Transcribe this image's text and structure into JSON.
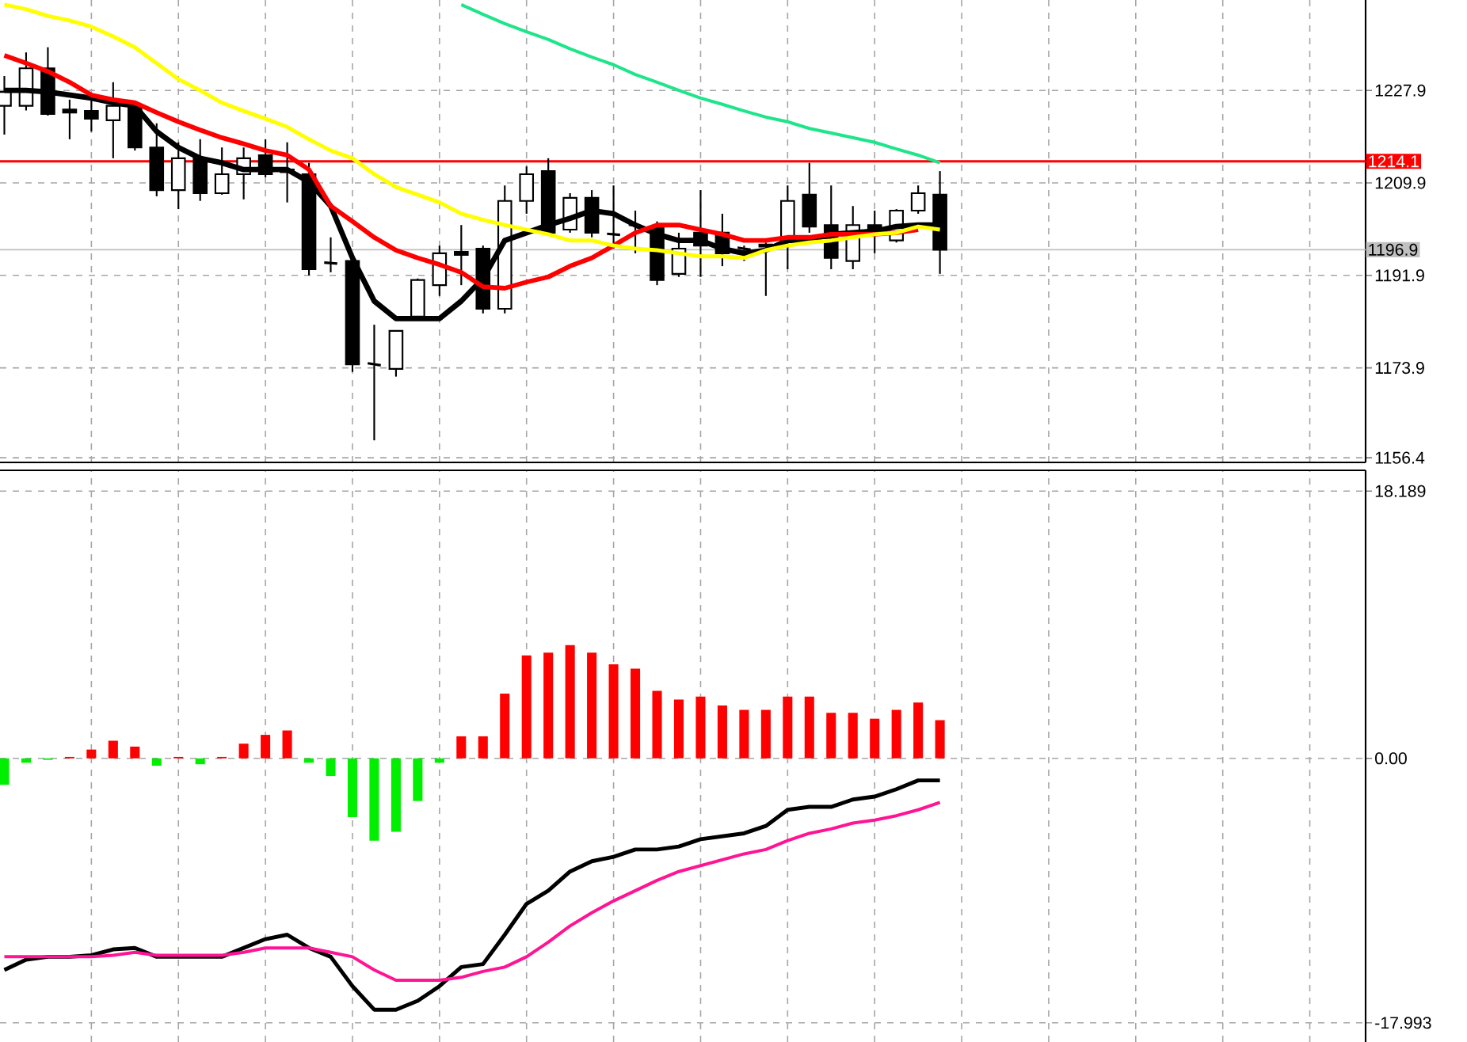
{
  "chart_data": [
    {
      "type": "candlestick",
      "categories": [
        null,
        null,
        null,
        null,
        null,
        null,
        null,
        null,
        null,
        null,
        null,
        null,
        null,
        null,
        null,
        null,
        null,
        null,
        null,
        null,
        null,
        null,
        null,
        null,
        null,
        null,
        null,
        null,
        null,
        null,
        null,
        null,
        null,
        null,
        null,
        null,
        null,
        null,
        null,
        null,
        null,
        null,
        null,
        null
      ],
      "ohlc": [
        [
          1224.9,
          1230.7,
          1219.3,
          1227.6
        ],
        [
          1224.9,
          1235.3,
          1224.0,
          1232.2
        ],
        [
          1232.2,
          1236.3,
          1223.0,
          1223.3
        ],
        [
          1224.2,
          1226.1,
          1218.4,
          1223.6
        ],
        [
          1223.9,
          1227.0,
          1219.9,
          1222.4
        ],
        [
          1222.1,
          1229.5,
          1214.7,
          1224.9
        ],
        [
          1224.9,
          1225.5,
          1216.2,
          1216.8
        ],
        [
          1216.8,
          1221.5,
          1207.3,
          1208.5
        ],
        [
          1208.5,
          1217.8,
          1204.8,
          1214.7
        ],
        [
          1214.7,
          1218.4,
          1206.4,
          1207.9
        ],
        [
          1207.9,
          1216.8,
          1207.6,
          1211.6
        ],
        [
          1211.6,
          1216.8,
          1206.7,
          1214.7
        ],
        [
          1215.3,
          1218.4,
          1211.0,
          1211.6
        ],
        [
          1212.5,
          1217.8,
          1206.1,
          1212.0
        ],
        [
          1211.6,
          1213.8,
          1191.9,
          1193.1
        ],
        [
          1194.4,
          1199.3,
          1192.5,
          1194.2
        ],
        [
          1194.7,
          1194.7,
          1173.1,
          1174.6
        ],
        [
          1174.8,
          1182.3,
          1159.8,
          1174.4
        ],
        [
          1173.7,
          1181.1,
          1172.2,
          1181.1
        ],
        [
          1183.9,
          1191.3,
          1183.6,
          1191.0
        ],
        [
          1190.0,
          1197.7,
          1187.9,
          1196.2
        ],
        [
          1196.5,
          1201.7,
          1190.0,
          1195.9
        ],
        [
          1197.1,
          1197.7,
          1184.5,
          1185.4
        ],
        [
          1185.4,
          1209.4,
          1184.5,
          1206.4
        ],
        [
          1206.4,
          1213.1,
          1203.9,
          1211.6
        ],
        [
          1212.2,
          1214.7,
          1199.9,
          1200.2
        ],
        [
          1200.8,
          1207.9,
          1200.2,
          1207.0
        ],
        [
          1207.0,
          1208.5,
          1199.3,
          1200.2
        ],
        [
          1200.0,
          1209.4,
          1197.1,
          1199.8
        ],
        [
          1201.8,
          1204.5,
          1196.2,
          1201.4
        ],
        [
          1201.4,
          1202.4,
          1190.0,
          1191.0
        ],
        [
          1192.2,
          1200.2,
          1191.6,
          1197.1
        ],
        [
          1200.2,
          1208.5,
          1191.6,
          1197.7
        ],
        [
          1200.2,
          1203.9,
          1193.7,
          1196.2
        ],
        [
          1197.3,
          1197.7,
          1194.7,
          1196.9
        ],
        [
          1197.9,
          1198.3,
          1187.9,
          1197.5
        ],
        [
          1198.7,
          1209.4,
          1193.1,
          1206.4
        ],
        [
          1207.6,
          1213.8,
          1200.2,
          1201.4
        ],
        [
          1201.7,
          1209.4,
          1193.1,
          1195.3
        ],
        [
          1194.7,
          1205.4,
          1193.1,
          1201.7
        ],
        [
          1201.7,
          1204.5,
          1196.2,
          1200.8
        ],
        [
          1198.7,
          1204.8,
          1198.3,
          1204.5
        ],
        [
          1204.5,
          1209.4,
          1203.9,
          1207.9
        ],
        [
          1207.6,
          1212.2,
          1192.2,
          1196.9
        ]
      ],
      "series": [
        {
          "type": "line",
          "color": "#000000",
          "values": [
            1227.9,
            1227.9,
            1227.6,
            1227.0,
            1226.4,
            1225.5,
            1224.9,
            1219.9,
            1216.8,
            1214.7,
            1213.8,
            1212.5,
            1212.5,
            1212.5,
            1210.1,
            1205.4,
            1195.3,
            1186.9,
            1183.5,
            1183.5,
            1183.5,
            1186.9,
            1191.3,
            1198.7,
            1200.2,
            1201.7,
            1203.0,
            1204.5,
            1203.9,
            1201.7,
            1199.9,
            1198.7,
            1198.7,
            1197.1,
            1196.2,
            1196.8,
            1198.7,
            1198.7,
            1199.9,
            1200.2,
            1200.5,
            1201.4,
            1201.7,
            1201.7
          ]
        },
        {
          "type": "line",
          "color": "#ff0000",
          "values": [
            1234.7,
            1233.2,
            1231.6,
            1229.5,
            1227.0,
            1226.1,
            1225.5,
            1223.6,
            1221.8,
            1220.2,
            1218.7,
            1217.5,
            1216.2,
            1215.3,
            1212.5,
            1205.4,
            1202.4,
            1199.3,
            1196.8,
            1195.3,
            1194.0,
            1192.5,
            1189.7,
            1189.4,
            1190.6,
            1191.6,
            1193.7,
            1195.3,
            1197.7,
            1200.2,
            1201.7,
            1201.7,
            1200.8,
            1199.9,
            1198.7,
            1198.7,
            1199.3,
            1199.3,
            1199.9,
            1199.9,
            1199.9,
            1200.2,
            1200.8,
            null
          ]
        },
        {
          "type": "line",
          "color": "#ffff00",
          "values": [
            1244.6,
            1243.7,
            1242.4,
            1241.5,
            1240.3,
            1238.4,
            1236.3,
            1233.2,
            1230.1,
            1227.9,
            1225.5,
            1223.9,
            1222.4,
            1220.8,
            1218.4,
            1216.2,
            1214.7,
            1211.6,
            1209.1,
            1207.6,
            1206.1,
            1203.9,
            1202.7,
            1201.7,
            1200.8,
            1199.9,
            1198.7,
            1198.7,
            1197.7,
            1197.1,
            1196.8,
            1196.2,
            1195.6,
            1195.6,
            1195.3,
            1196.8,
            1197.7,
            1198.3,
            1198.7,
            1199.3,
            1199.9,
            1200.2,
            1201.4,
            1200.8
          ]
        },
        {
          "type": "line",
          "color": "#1ee58a",
          "values": [
            null,
            null,
            null,
            null,
            null,
            null,
            null,
            null,
            null,
            null,
            null,
            null,
            null,
            null,
            null,
            null,
            null,
            null,
            null,
            null,
            null,
            1244.6,
            1242.7,
            1240.9,
            1239.3,
            1237.8,
            1236.0,
            1234.4,
            1232.9,
            1231.0,
            1229.5,
            1227.9,
            1226.4,
            1225.2,
            1223.9,
            1222.7,
            1221.8,
            1220.5,
            1219.6,
            1218.7,
            1217.8,
            1216.5,
            1215.3,
            1213.8
          ]
        }
      ],
      "ylim": [
        1155.5,
        1245.5
      ],
      "yticks": [
        1227.9,
        1209.9,
        1191.9,
        1173.9,
        1156.4
      ],
      "ref_lines": [
        {
          "axis": "y",
          "value": 1214.1,
          "label": "1214.1",
          "color": "#ff0000"
        },
        {
          "axis": "y",
          "value": 1196.9,
          "label": "1196.9",
          "color": "#c0c0c0"
        }
      ],
      "grid": true,
      "tick_labels": "y"
    },
    {
      "type": "bar",
      "categories": [
        null,
        null,
        null,
        null,
        null,
        null,
        null,
        null,
        null,
        null,
        null,
        null,
        null,
        null,
        null,
        null,
        null,
        null,
        null,
        null,
        null,
        null,
        null,
        null,
        null,
        null,
        null,
        null,
        null,
        null,
        null,
        null,
        null,
        null,
        null,
        null,
        null,
        null,
        null,
        null,
        null,
        null,
        null,
        null
      ],
      "series": [
        {
          "type": "bar",
          "values": [
            -1.8,
            -0.3,
            -0.1,
            0.1,
            0.6,
            1.2,
            0.8,
            -0.5,
            0.1,
            -0.4,
            0.1,
            1.0,
            1.6,
            1.9,
            -0.3,
            -1.2,
            -4.0,
            -5.6,
            -5.0,
            -2.9,
            -0.3,
            1.5,
            1.5,
            4.4,
            7.0,
            7.2,
            7.7,
            7.2,
            6.4,
            6.1,
            4.6,
            4.0,
            4.2,
            3.6,
            3.3,
            3.3,
            4.2,
            4.2,
            3.1,
            3.1,
            2.7,
            3.3,
            3.8,
            2.6
          ],
          "colors": [
            "#00ee00",
            "#00ee00",
            "#00ee00",
            "#ff0000",
            "#ff0000",
            "#ff0000",
            "#ff0000",
            "#00ee00",
            "#ff0000",
            "#00ee00",
            "#ff0000",
            "#ff0000",
            "#ff0000",
            "#ff0000",
            "#00ee00",
            "#00ee00",
            "#00ee00",
            "#00ee00",
            "#00ee00",
            "#00ee00",
            "#00ee00",
            "#ff0000",
            "#ff0000",
            "#ff0000",
            "#ff0000",
            "#ff0000",
            "#ff0000",
            "#ff0000",
            "#ff0000",
            "#ff0000",
            "#ff0000",
            "#ff0000",
            "#ff0000",
            "#ff0000",
            "#ff0000",
            "#ff0000",
            "#ff0000",
            "#ff0000",
            "#ff0000",
            "#ff0000",
            "#ff0000",
            "#ff0000",
            "#ff0000",
            "#ff0000"
          ]
        },
        {
          "type": "line",
          "color": "#000000",
          "values": [
            -14.4,
            -13.7,
            -13.5,
            -13.5,
            -13.4,
            -13.0,
            -12.9,
            -13.5,
            -13.5,
            -13.5,
            -13.5,
            -12.9,
            -12.3,
            -12.0,
            -12.9,
            -13.5,
            -15.5,
            -17.1,
            -17.1,
            -16.5,
            -15.5,
            -14.2,
            -14.0,
            -12.0,
            -9.9,
            -9.0,
            -7.7,
            -7.0,
            -6.7,
            -6.2,
            -6.2,
            -6.0,
            -5.5,
            -5.3,
            -5.1,
            -4.6,
            -3.5,
            -3.3,
            -3.3,
            -2.8,
            -2.6,
            -2.1,
            -1.5,
            -1.5
          ]
        },
        {
          "type": "line",
          "color": "#ff1493",
          "values": [
            -13.5,
            -13.5,
            -13.5,
            -13.5,
            -13.5,
            -13.4,
            -13.2,
            -13.4,
            -13.4,
            -13.4,
            -13.4,
            -13.2,
            -12.9,
            -12.9,
            -12.9,
            -13.2,
            -13.5,
            -14.4,
            -15.1,
            -15.1,
            -15.1,
            -14.9,
            -14.5,
            -14.2,
            -13.5,
            -12.5,
            -11.4,
            -10.5,
            -9.7,
            -9.0,
            -8.3,
            -7.7,
            -7.3,
            -6.9,
            -6.5,
            -6.2,
            -5.6,
            -5.1,
            -4.8,
            -4.4,
            -4.2,
            -3.9,
            -3.5,
            -3.0
          ]
        }
      ],
      "ylim": [
        -19.3,
        19.6
      ],
      "yticks": [
        18.189,
        {
          "value": 0,
          "label": "0.00"
        },
        -17.993
      ],
      "grid": true,
      "tick_labels": "y"
    }
  ]
}
